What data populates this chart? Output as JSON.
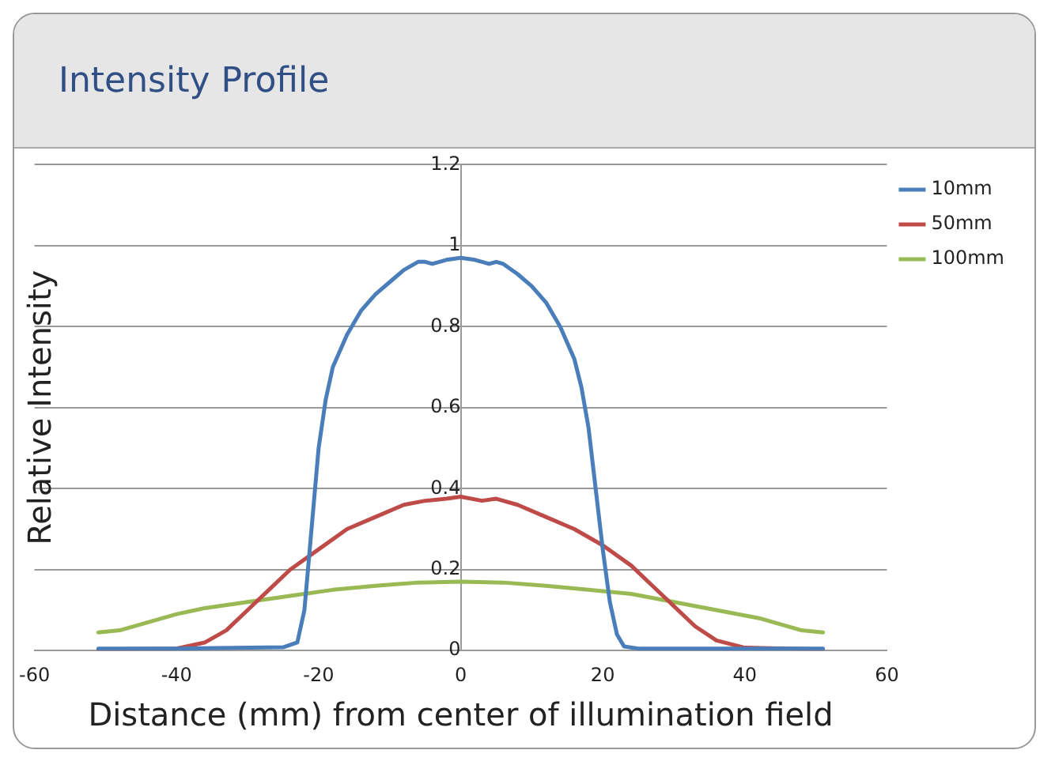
{
  "chart_data": {
    "type": "line",
    "title": "Intensity Profile",
    "xlabel": "Distance (mm) from center of illumination field",
    "ylabel": "Relative Intensity",
    "xlim": [
      -60,
      60
    ],
    "xticks": [
      -60,
      -40,
      -20,
      0,
      20,
      40,
      60
    ],
    "ylim": [
      0,
      1.2
    ],
    "yticks": [
      0,
      0.2,
      0.4,
      0.6,
      0.8,
      1,
      1.2
    ],
    "grid": "y",
    "legend": "top right",
    "marker": "none",
    "line_style": "solid",
    "series": [
      {
        "name": "10mm",
        "color": "#4a7ebb",
        "x": [
          -51,
          -40,
          -25,
          -23,
          -22,
          -21,
          -20,
          -19,
          -18,
          -16,
          -14,
          -12,
          -10,
          -8,
          -6,
          -5,
          -4,
          -2,
          0,
          2,
          4,
          5,
          6,
          8,
          10,
          12,
          14,
          16,
          17,
          18,
          19,
          20,
          21,
          22,
          23,
          25,
          40,
          51
        ],
        "values": [
          0.005,
          0.005,
          0.008,
          0.02,
          0.1,
          0.3,
          0.5,
          0.62,
          0.7,
          0.78,
          0.84,
          0.88,
          0.91,
          0.94,
          0.96,
          0.96,
          0.955,
          0.965,
          0.97,
          0.965,
          0.955,
          0.96,
          0.955,
          0.93,
          0.9,
          0.86,
          0.8,
          0.72,
          0.65,
          0.55,
          0.4,
          0.25,
          0.12,
          0.04,
          0.01,
          0.005,
          0.005,
          0.005
        ]
      },
      {
        "name": "50mm",
        "color": "#be4b48",
        "x": [
          -51,
          -40,
          -36,
          -33,
          -30,
          -27,
          -24,
          -20,
          -16,
          -12,
          -8,
          -5,
          -2,
          0,
          3,
          5,
          8,
          12,
          16,
          20,
          24,
          27,
          30,
          33,
          36,
          40,
          51
        ],
        "values": [
          0.003,
          0.005,
          0.02,
          0.05,
          0.1,
          0.15,
          0.2,
          0.25,
          0.3,
          0.33,
          0.36,
          0.37,
          0.375,
          0.38,
          0.37,
          0.375,
          0.36,
          0.33,
          0.3,
          0.26,
          0.21,
          0.16,
          0.11,
          0.06,
          0.025,
          0.007,
          0.003
        ]
      },
      {
        "name": "100mm",
        "color": "#98b954",
        "x": [
          -51,
          -48,
          -44,
          -40,
          -36,
          -30,
          -24,
          -18,
          -12,
          -6,
          0,
          6,
          12,
          18,
          24,
          30,
          36,
          42,
          48,
          51
        ],
        "values": [
          0.045,
          0.05,
          0.07,
          0.09,
          0.105,
          0.12,
          0.135,
          0.15,
          0.16,
          0.168,
          0.17,
          0.168,
          0.16,
          0.15,
          0.14,
          0.12,
          0.1,
          0.08,
          0.05,
          0.045
        ]
      }
    ]
  }
}
